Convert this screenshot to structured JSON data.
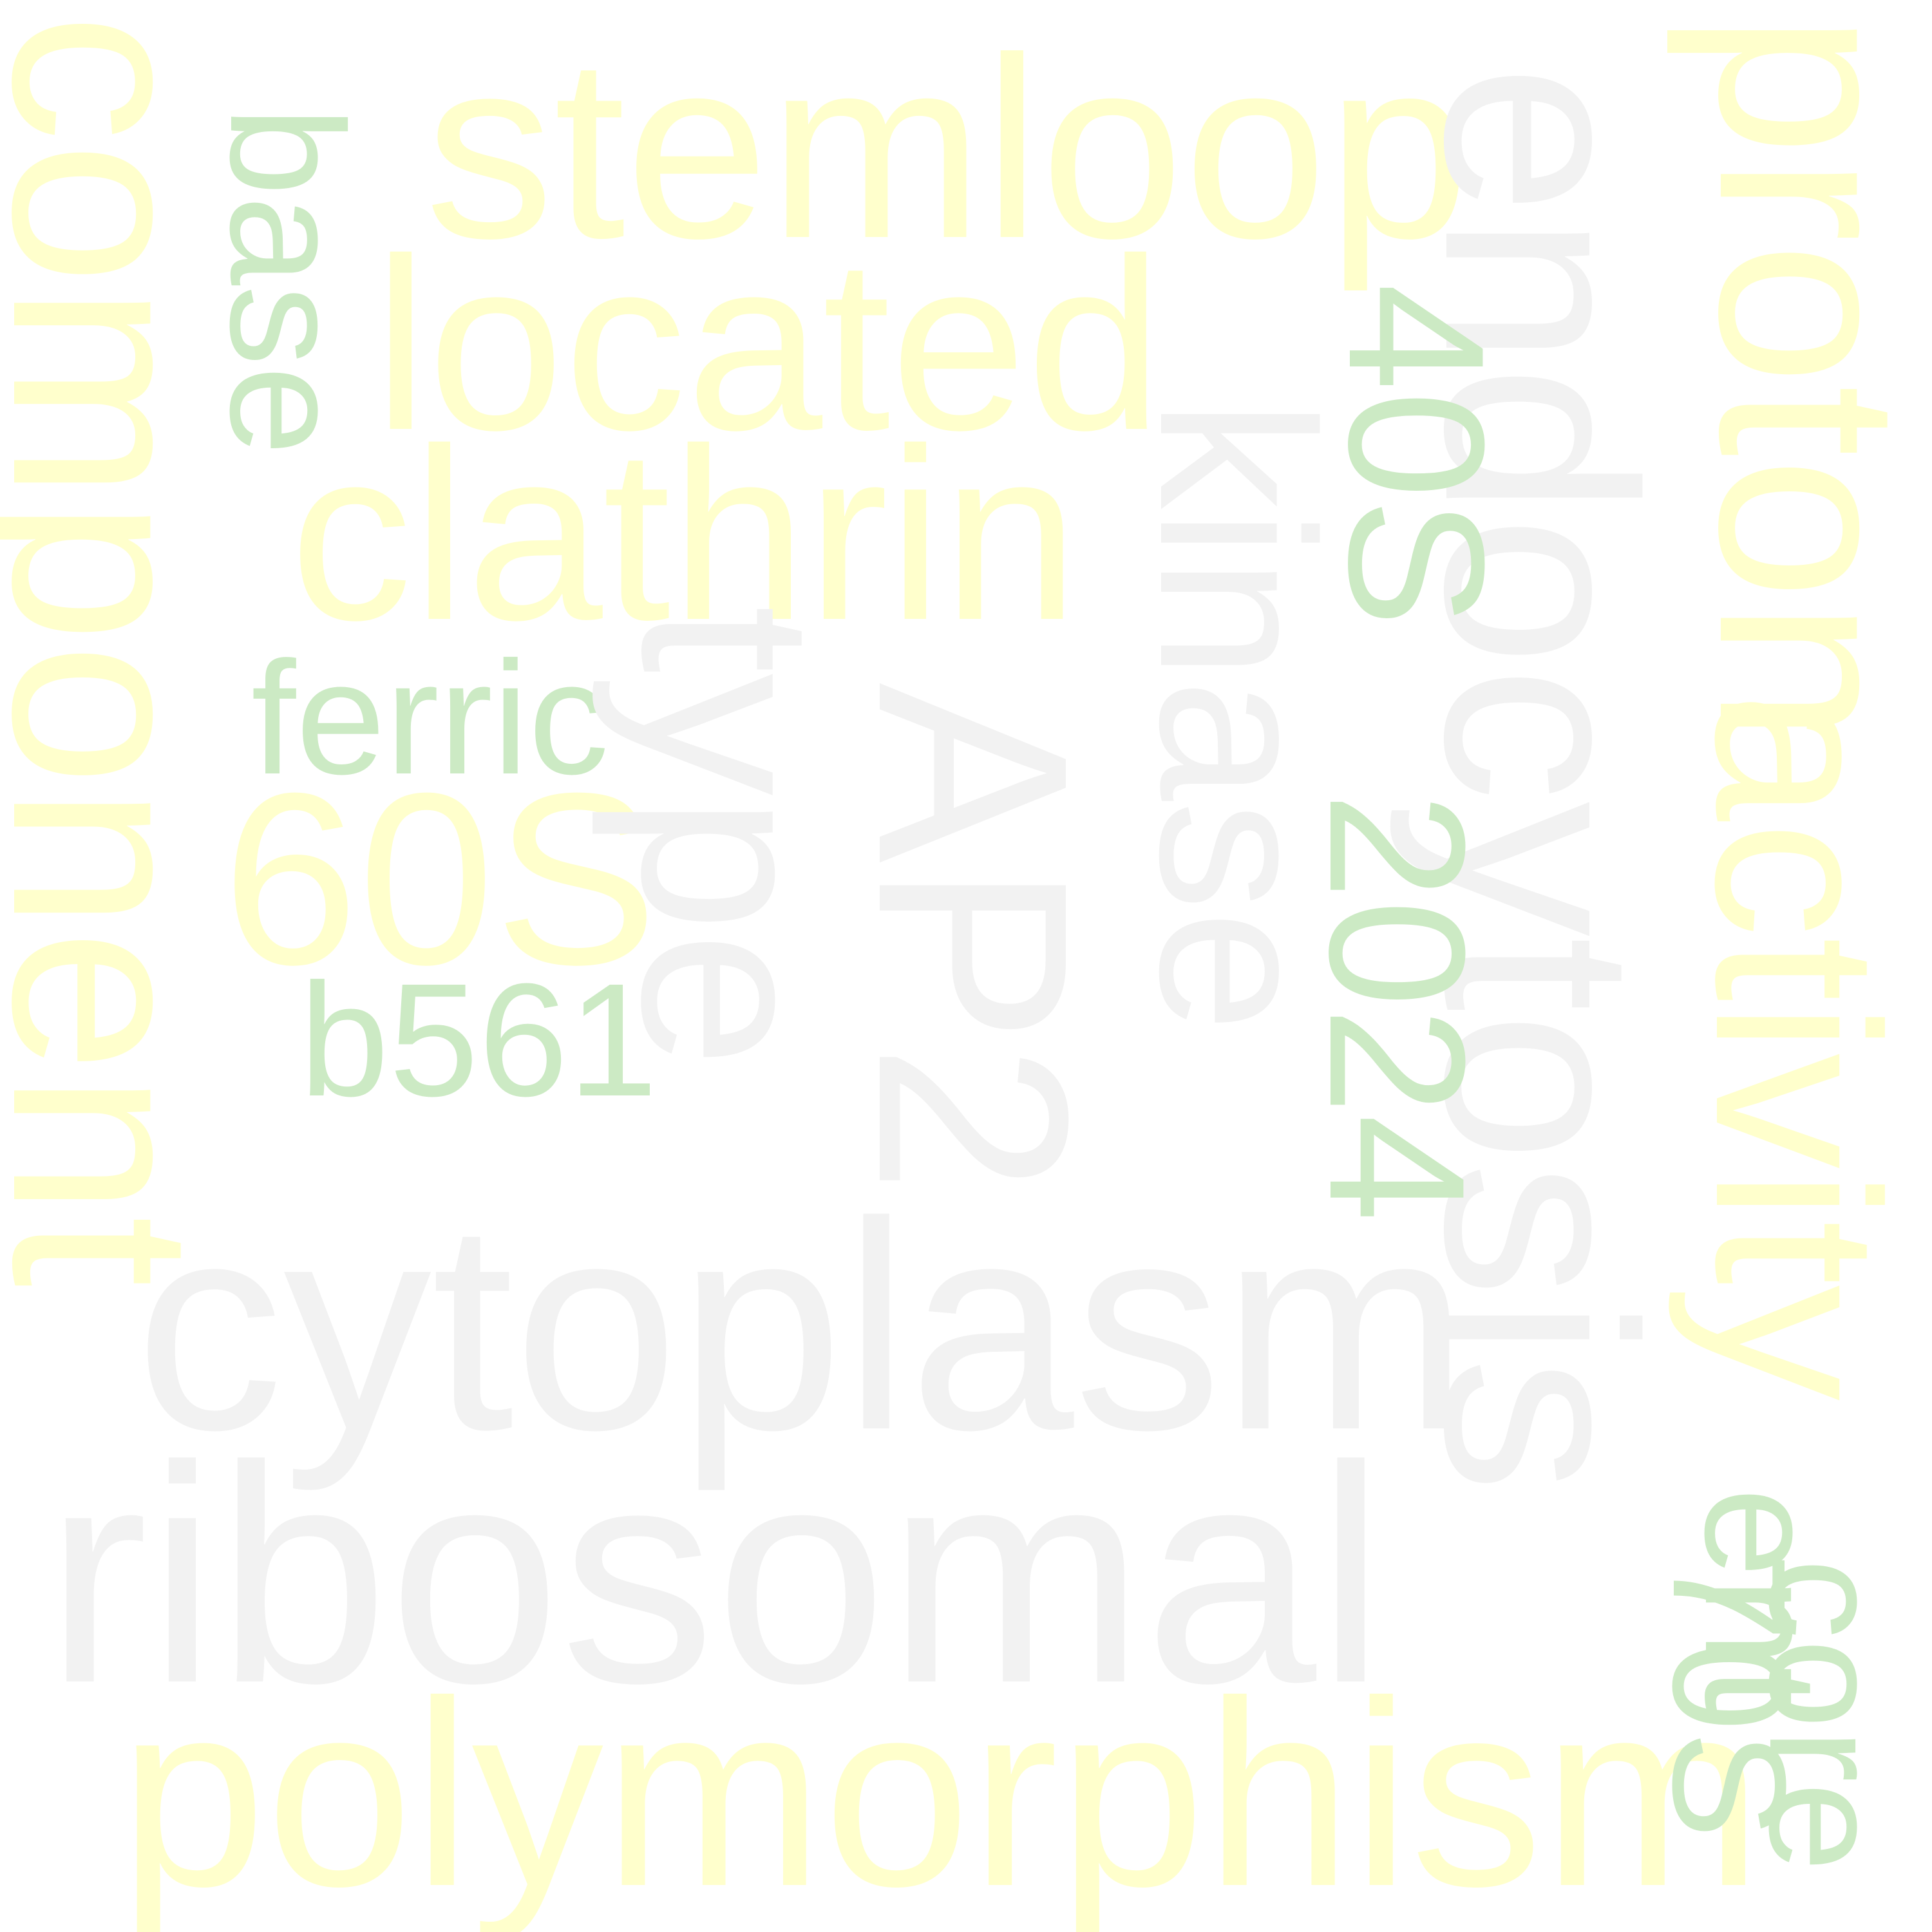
{
  "colors": {
    "gray": "#f2f2f2",
    "yellow": "#ffffcc",
    "green": "#cceac4",
    "background": "#ffffff"
  },
  "words": {
    "ribosomal": "ribosomal",
    "cytoplasm": "cytoplasm",
    "endocytosis": "endocytosis",
    "kinase": "kinase",
    "ap2": "AP2",
    "type": "type",
    "component": "component",
    "polymorphism": "polymorphism",
    "stemloop": "stemloop",
    "located": "located",
    "clathrin": "clathrin",
    "proton": "proton",
    "activity": "activity",
    "s60": "60S",
    "s40": "40S",
    "y2024": "2024",
    "ferric": "ferric",
    "base": "base",
    "b561": "b561",
    "core": "core",
    "s70": "70S",
    "ent": "ent"
  }
}
